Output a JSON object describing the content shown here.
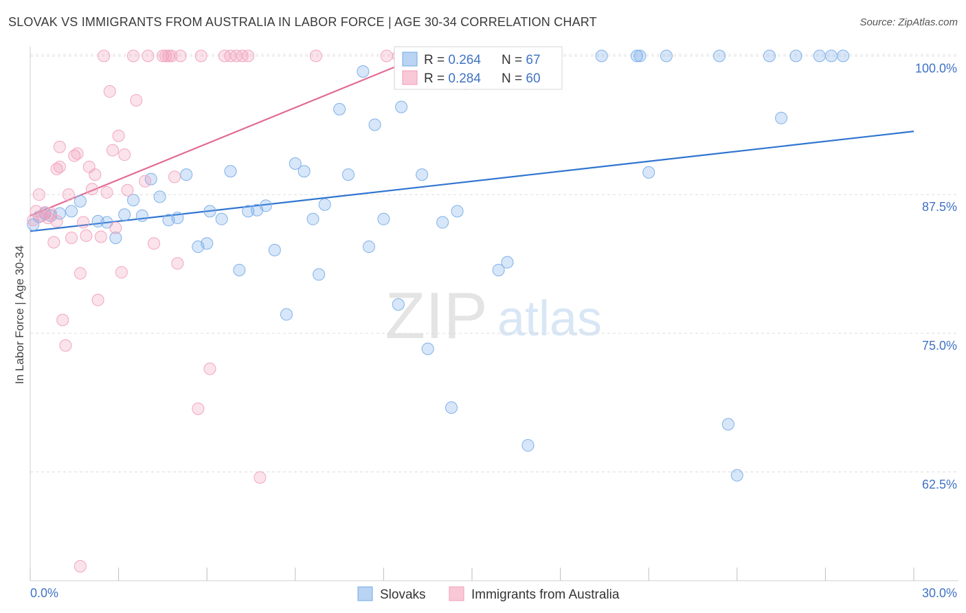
{
  "header": {
    "title": "SLOVAK VS IMMIGRANTS FROM AUSTRALIA IN LABOR FORCE | AGE 30-34 CORRELATION CHART",
    "source": "Source: ZipAtlas.com"
  },
  "watermark": {
    "zip": "ZIP",
    "atlas": "atlas"
  },
  "colors": {
    "blue": "#6fa8e8",
    "blue_line": "#2f74d0",
    "pink": "#f29bb8",
    "pink_line": "#e26a94",
    "axis_text": "#3f72c4"
  },
  "chart_data": {
    "type": "scatter",
    "title": "SLOVAK VS IMMIGRANTS FROM AUSTRALIA IN LABOR FORCE | AGE 30-34 CORRELATION CHART",
    "xlabel": "",
    "ylabel": "In Labor Force | Age 30-34",
    "xlim": [
      0,
      30
    ],
    "ylim": [
      52.7,
      101.2
    ],
    "x_tick_labels": [
      "0.0%",
      "30.0%"
    ],
    "y_ticks": [
      62.5,
      75.0,
      87.5,
      100.0
    ],
    "y_tick_labels": [
      "62.5%",
      "75.0%",
      "87.5%",
      "100.0%"
    ],
    "legend_stats": [
      {
        "r_label": "R = ",
        "r_value": "0.264",
        "n_label": "N = ",
        "n_value": "67"
      },
      {
        "r_label": "R = ",
        "r_value": "0.284",
        "n_label": "N = ",
        "n_value": "60"
      }
    ],
    "series": [
      {
        "name": "Slovaks",
        "color": "#6fa8e8",
        "trend": {
          "x": [
            0,
            30
          ],
          "y": [
            84.2,
            93.2
          ]
        },
        "points": [
          [
            0.1,
            84.8
          ],
          [
            0.3,
            85.5
          ],
          [
            0.5,
            85.8
          ],
          [
            0.7,
            85.6
          ],
          [
            1.0,
            85.8
          ],
          [
            1.4,
            86.0
          ],
          [
            1.7,
            86.9
          ],
          [
            2.3,
            85.1
          ],
          [
            2.6,
            85.0
          ],
          [
            2.9,
            83.6
          ],
          [
            3.2,
            85.7
          ],
          [
            3.5,
            87.0
          ],
          [
            3.8,
            85.6
          ],
          [
            4.1,
            88.9
          ],
          [
            4.4,
            87.3
          ],
          [
            4.7,
            85.2
          ],
          [
            5.0,
            85.4
          ],
          [
            5.3,
            89.3
          ],
          [
            5.7,
            82.8
          ],
          [
            6.0,
            83.1
          ],
          [
            6.1,
            86.0
          ],
          [
            6.5,
            85.3
          ],
          [
            6.8,
            89.6
          ],
          [
            7.1,
            80.7
          ],
          [
            7.4,
            86.0
          ],
          [
            7.7,
            86.1
          ],
          [
            8.0,
            86.5
          ],
          [
            8.3,
            82.5
          ],
          [
            8.7,
            76.7
          ],
          [
            9.0,
            90.3
          ],
          [
            9.3,
            89.6
          ],
          [
            9.6,
            85.3
          ],
          [
            9.8,
            80.3
          ],
          [
            10.0,
            86.6
          ],
          [
            10.5,
            95.2
          ],
          [
            10.8,
            89.3
          ],
          [
            11.3,
            98.6
          ],
          [
            11.5,
            82.8
          ],
          [
            11.7,
            93.8
          ],
          [
            12.0,
            85.3
          ],
          [
            12.5,
            77.6
          ],
          [
            12.6,
            95.4
          ],
          [
            13.3,
            89.3
          ],
          [
            13.5,
            73.6
          ],
          [
            13.2,
            100.0
          ],
          [
            14.0,
            85.0
          ],
          [
            14.3,
            68.3
          ],
          [
            14.5,
            86.0
          ],
          [
            14.8,
            97.5
          ],
          [
            14.9,
            100.0
          ],
          [
            15.9,
            80.7
          ],
          [
            16.2,
            81.4
          ],
          [
            16.9,
            64.9
          ],
          [
            19.4,
            100.0
          ],
          [
            20.6,
            100.0
          ],
          [
            20.7,
            100.0
          ],
          [
            21.0,
            89.5
          ],
          [
            21.6,
            100.0
          ],
          [
            23.4,
            100.0
          ],
          [
            23.7,
            66.8
          ],
          [
            24.0,
            62.2
          ],
          [
            25.1,
            100.0
          ],
          [
            25.5,
            94.4
          ],
          [
            26.0,
            100.0
          ],
          [
            26.8,
            100.0
          ],
          [
            27.2,
            100.0
          ],
          [
            27.6,
            100.0
          ]
        ]
      },
      {
        "name": "Immigrants from Australia",
        "color": "#f29bb8",
        "trend": {
          "x": [
            0,
            13.3
          ],
          "y": [
            85.6,
            100.0
          ]
        },
        "points": [
          [
            0.1,
            85.2
          ],
          [
            0.2,
            86.0
          ],
          [
            0.3,
            87.5
          ],
          [
            0.4,
            85.6
          ],
          [
            0.5,
            85.9
          ],
          [
            0.6,
            85.4
          ],
          [
            0.7,
            85.8
          ],
          [
            0.8,
            83.2
          ],
          [
            0.9,
            85.1
          ],
          [
            0.9,
            89.8
          ],
          [
            1.0,
            90.0
          ],
          [
            1.0,
            91.8
          ],
          [
            1.1,
            76.2
          ],
          [
            1.2,
            73.9
          ],
          [
            1.3,
            87.5
          ],
          [
            1.4,
            83.6
          ],
          [
            1.5,
            91.0
          ],
          [
            1.6,
            91.2
          ],
          [
            1.7,
            80.4
          ],
          [
            1.8,
            85.0
          ],
          [
            1.9,
            83.8
          ],
          [
            2.0,
            90.0
          ],
          [
            2.1,
            88.0
          ],
          [
            2.2,
            89.3
          ],
          [
            2.3,
            78.0
          ],
          [
            2.4,
            83.7
          ],
          [
            2.5,
            100.0
          ],
          [
            2.6,
            87.7
          ],
          [
            2.7,
            96.8
          ],
          [
            2.8,
            91.5
          ],
          [
            2.9,
            84.5
          ],
          [
            3.0,
            92.8
          ],
          [
            3.1,
            80.5
          ],
          [
            3.2,
            91.1
          ],
          [
            3.3,
            87.9
          ],
          [
            3.5,
            100.0
          ],
          [
            3.6,
            96.0
          ],
          [
            3.9,
            88.7
          ],
          [
            4.0,
            100.0
          ],
          [
            4.2,
            83.1
          ],
          [
            4.5,
            100.0
          ],
          [
            4.6,
            100.0
          ],
          [
            4.7,
            100.0
          ],
          [
            4.8,
            100.0
          ],
          [
            4.9,
            89.1
          ],
          [
            5.0,
            81.3
          ],
          [
            5.1,
            100.0
          ],
          [
            5.7,
            68.2
          ],
          [
            5.8,
            100.0
          ],
          [
            6.1,
            71.8
          ],
          [
            6.6,
            100.0
          ],
          [
            6.8,
            100.0
          ],
          [
            7.0,
            100.0
          ],
          [
            7.2,
            100.0
          ],
          [
            7.8,
            62.0
          ],
          [
            7.4,
            100.0
          ],
          [
            9.7,
            100.0
          ],
          [
            12.1,
            100.0
          ],
          [
            12.5,
            100.0
          ],
          [
            1.7,
            54.0
          ]
        ]
      }
    ],
    "legend": [
      "Slovaks",
      "Immigrants from Australia"
    ]
  }
}
